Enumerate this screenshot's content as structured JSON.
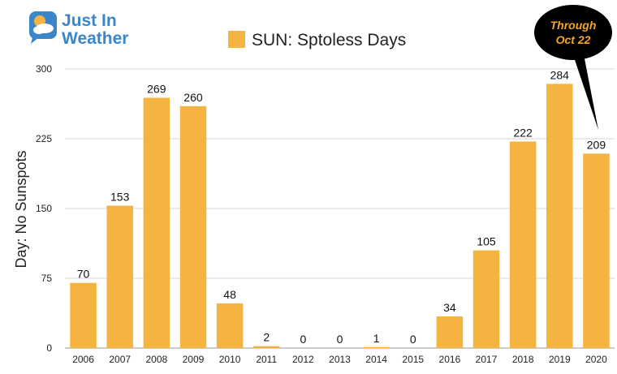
{
  "logo": {
    "line1": "Just In",
    "line2": "Weather",
    "icon": "sun-cloud-icon",
    "color": "#3a86c8"
  },
  "callout": {
    "line1": "Through",
    "line2": "Oct 22",
    "text_color": "#f5a623",
    "bg_color": "#000000"
  },
  "chart_data": {
    "type": "bar",
    "title": "",
    "legend": [
      "SUN: Sptoless Days"
    ],
    "legend_position": "top-center",
    "xlabel": "",
    "ylabel": "Day: No Sunspots",
    "ylim": [
      0,
      300
    ],
    "yticks": [
      0,
      75,
      150,
      225,
      300
    ],
    "grid": true,
    "bar_color": "#f5b43f",
    "categories": [
      "2006",
      "2007",
      "2008",
      "2009",
      "2010",
      "2011",
      "2012",
      "2013",
      "2014",
      "2015",
      "2016",
      "2017",
      "2018",
      "2019",
      "2020"
    ],
    "series": [
      {
        "name": "SUN: Sptoless Days",
        "values": [
          70,
          153,
          269,
          260,
          48,
          2,
          0,
          0,
          1,
          0,
          34,
          105,
          222,
          284,
          209
        ]
      }
    ]
  }
}
